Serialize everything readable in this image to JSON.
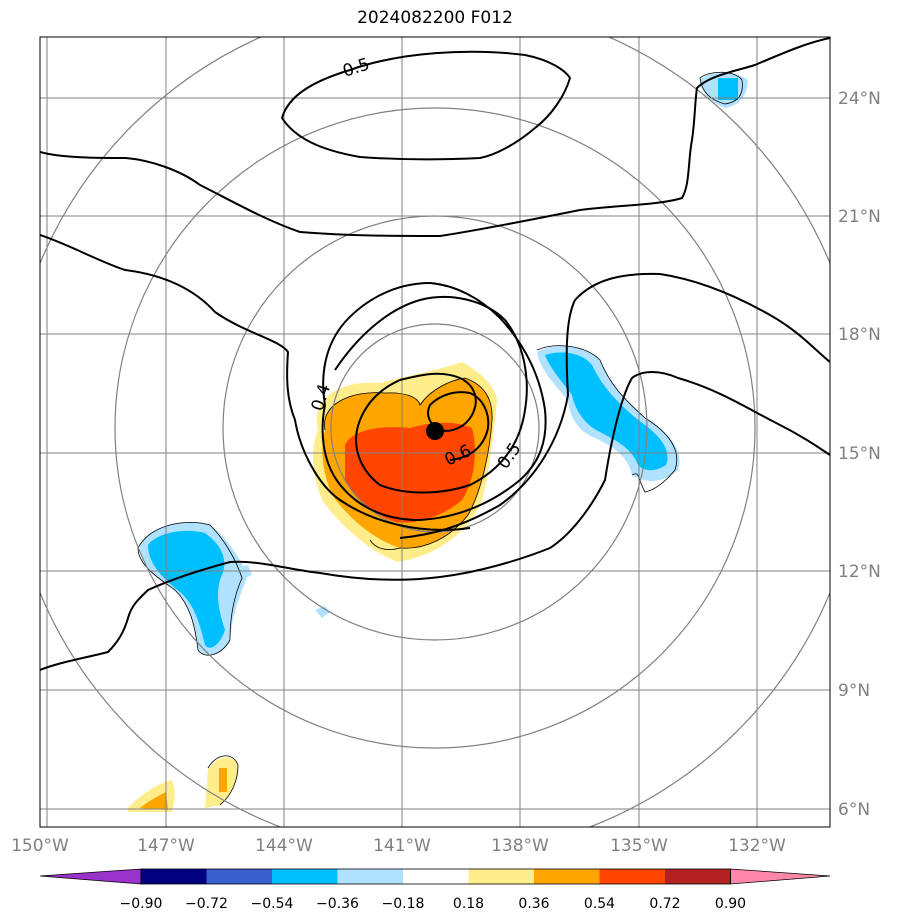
{
  "title": "2024082200 F012",
  "map": {
    "lat_ticks": [
      "6°N",
      "9°N",
      "12°N",
      "15°N",
      "18°N",
      "21°N",
      "24°N"
    ],
    "lon_ticks": [
      "150°W",
      "147°W",
      "144°W",
      "141°W",
      "138°W",
      "135°W",
      "132°W"
    ],
    "storm_center": {
      "lat": 15.5,
      "lon": "140.2°W"
    },
    "range_rings": 4,
    "contour_labels": [
      "0.5",
      "0.4",
      "0.6",
      "0.5"
    ],
    "colors": {
      "contour": "#000000",
      "grid": "#808080",
      "ring": "#808080"
    }
  },
  "colorbar": {
    "ticks": [
      "−0.90",
      "−0.72",
      "−0.54",
      "−0.36",
      "−0.18",
      "0.18",
      "0.36",
      "0.54",
      "0.72",
      "0.90"
    ],
    "colors": [
      "#9933cc",
      "#000080",
      "#3a5fcd",
      "#00bfff",
      "#b0e2ff",
      "#ffffff",
      "#ffec8b",
      "#ffa500",
      "#ff4500",
      "#b22222",
      "#ff88aa"
    ]
  }
}
